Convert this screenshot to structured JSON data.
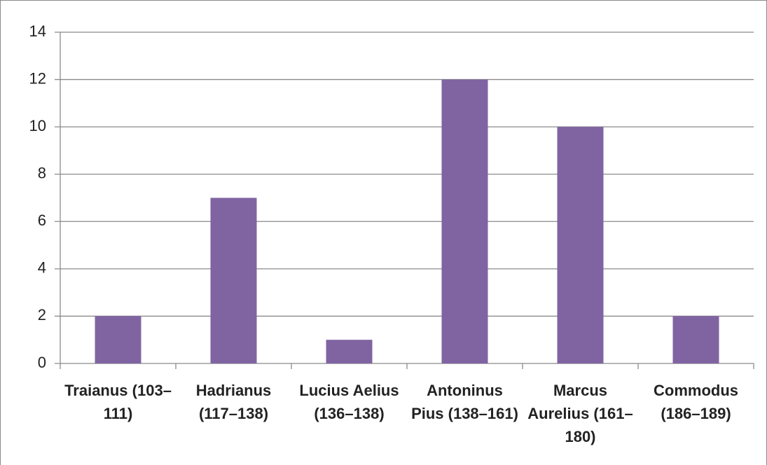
{
  "chart_data": {
    "type": "bar",
    "categories": [
      "Traianus (103–111)",
      "Hadrianus (117–138)",
      "Lucius Aelius (136–138)",
      "Antoninus Pius (138–161)",
      "Marcus Aurelius (161–180)",
      "Commodus (186–189)"
    ],
    "values": [
      2,
      7,
      1,
      12,
      10,
      2
    ],
    "color": "#8064a2",
    "ylim": [
      0,
      14
    ],
    "yticks": [
      0,
      2,
      4,
      6,
      8,
      10,
      12,
      14
    ],
    "grid": true
  }
}
